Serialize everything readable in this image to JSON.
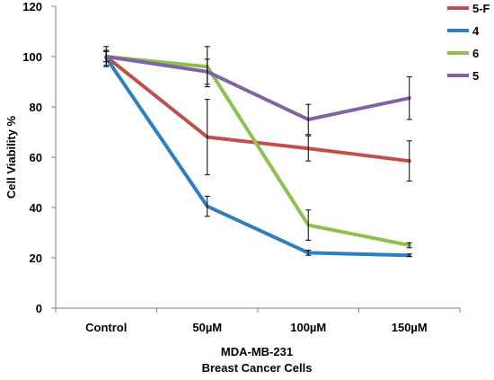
{
  "chart_data": {
    "type": "line",
    "categories": [
      "Control",
      "50µM",
      "100µM",
      "150µM"
    ],
    "ylabel": "Cell Viability %",
    "xlabel_lines": [
      "MDA-MB-231",
      "Breast Cancer Cells"
    ],
    "ylim": [
      0,
      120
    ],
    "yticks": [
      0,
      20,
      40,
      60,
      80,
      100,
      120
    ],
    "grid": false,
    "legend_position": "top-right",
    "series": [
      {
        "name": "5-F",
        "color": "#c0504d",
        "values": [
          100,
          68,
          63.5,
          58.5
        ],
        "errors": [
          4,
          15,
          5,
          8
        ]
      },
      {
        "name": "4",
        "color": "#2e7fbd",
        "values": [
          99.5,
          40.5,
          22,
          21
        ],
        "errors": [
          3,
          4,
          1,
          0.5
        ]
      },
      {
        "name": "6",
        "color": "#8dc04f",
        "values": [
          100,
          96,
          33,
          25
        ],
        "errors": [
          2,
          8,
          6,
          1
        ]
      },
      {
        "name": "5",
        "color": "#8064a2",
        "values": [
          100,
          94,
          75,
          83.5
        ],
        "errors": [
          2,
          5,
          6,
          8.5
        ]
      }
    ]
  }
}
